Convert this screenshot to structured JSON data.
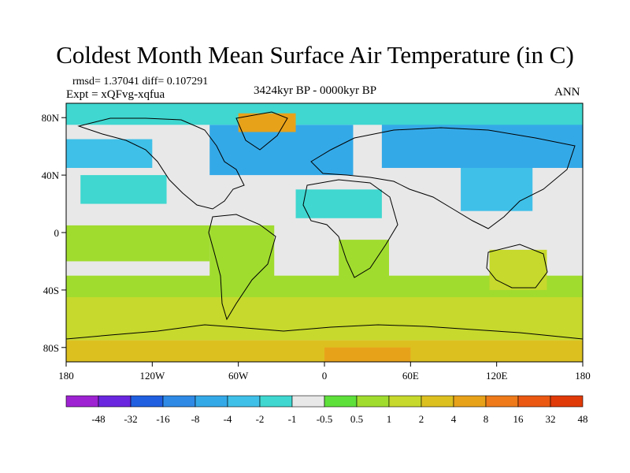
{
  "title": "Coldest Month Mean Surface Air Temperature (in C)",
  "stats_line": "rmsd= 1.37041 diff= 0.107291",
  "experiment_line": "Expt = xQFvg-xqfua",
  "period_label": "3424kyr BP - 0000kyr BP",
  "season_label": "ANN",
  "chart_data": {
    "type": "heatmap",
    "title": "Coldest Month Mean Surface Air Temperature (in C)",
    "projection": "cylindrical-equidistant",
    "x_range": [
      -180,
      180
    ],
    "y_range": [
      -90,
      90
    ],
    "x_ticks": [
      {
        "value": -180,
        "label": "180"
      },
      {
        "value": -120,
        "label": "120W"
      },
      {
        "value": -60,
        "label": "60W"
      },
      {
        "value": 0,
        "label": "0"
      },
      {
        "value": 60,
        "label": "60E"
      },
      {
        "value": 120,
        "label": "120E"
      },
      {
        "value": 180,
        "label": "180"
      }
    ],
    "y_ticks": [
      {
        "value": 80,
        "label": "80N"
      },
      {
        "value": 40,
        "label": "40N"
      },
      {
        "value": 0,
        "label": "0"
      },
      {
        "value": -40,
        "label": "40S"
      },
      {
        "value": -80,
        "label": "80S"
      }
    ],
    "colorbar": {
      "colors": [
        "#9e22d2",
        "#6a26de",
        "#1f5fe0",
        "#2f8ae6",
        "#34a9e8",
        "#3fc0e8",
        "#3fd7d0",
        "#e8e8e8",
        "#5ee03a",
        "#a0dc2e",
        "#c6d92c",
        "#dcc020",
        "#e8a21a",
        "#ee7a1a",
        "#ea5812",
        "#e03a08"
      ],
      "labels": [
        "-48",
        "-32",
        "-16",
        "-8",
        "-4",
        "-2",
        "-1",
        "-0.5",
        "0.5",
        "1",
        "2",
        "4",
        "8",
        "16",
        "32",
        "48"
      ]
    },
    "regions": [
      {
        "name": "background",
        "lon_range": [
          -180,
          180
        ],
        "lat_range": [
          -90,
          90
        ],
        "color": "#e8e8e8"
      },
      {
        "name": "southern-ocean-band",
        "lon_range": [
          -180,
          180
        ],
        "lat_range": [
          -75,
          -45
        ],
        "color": "#c6d92c"
      },
      {
        "name": "southern-ocean-band-north",
        "lon_range": [
          -180,
          180
        ],
        "lat_range": [
          -45,
          -30
        ],
        "color": "#a0dc2e"
      },
      {
        "name": "antarctic-coast",
        "lon_range": [
          -180,
          180
        ],
        "lat_range": [
          -90,
          -75
        ],
        "color": "#dcc020"
      },
      {
        "name": "tropical-pacific",
        "lon_range": [
          -180,
          -80
        ],
        "lat_range": [
          -20,
          5
        ],
        "color": "#a0dc2e"
      },
      {
        "name": "north-atlantic",
        "lon_range": [
          -80,
          20
        ],
        "lat_range": [
          40,
          75
        ],
        "color": "#34a9e8"
      },
      {
        "name": "north-pacific",
        "lon_range": [
          -180,
          -120
        ],
        "lat_range": [
          45,
          65
        ],
        "color": "#3fc0e8"
      },
      {
        "name": "mid-north-pacific",
        "lon_range": [
          -170,
          -110
        ],
        "lat_range": [
          20,
          40
        ],
        "color": "#3fd7d0"
      },
      {
        "name": "siberia",
        "lon_range": [
          40,
          180
        ],
        "lat_range": [
          45,
          80
        ],
        "color": "#34a9e8"
      },
      {
        "name": "east-asia",
        "lon_range": [
          95,
          145
        ],
        "lat_range": [
          15,
          45
        ],
        "color": "#3fc0e8"
      },
      {
        "name": "arctic-ocean",
        "lon_range": [
          -180,
          180
        ],
        "lat_range": [
          75,
          90
        ],
        "color": "#3fd7d0"
      },
      {
        "name": "north-africa",
        "lon_range": [
          -20,
          40
        ],
        "lat_range": [
          10,
          30
        ],
        "color": "#3fd7d0"
      },
      {
        "name": "southern-africa",
        "lon_range": [
          10,
          45
        ],
        "lat_range": [
          -35,
          -5
        ],
        "color": "#a0dc2e"
      },
      {
        "name": "south-america",
        "lon_range": [
          -80,
          -35
        ],
        "lat_range": [
          -35,
          5
        ],
        "color": "#a0dc2e"
      },
      {
        "name": "australia",
        "lon_range": [
          115,
          155
        ],
        "lat_range": [
          -40,
          -12
        ],
        "color": "#c6d92c"
      },
      {
        "name": "greenland-warm",
        "lon_range": [
          -60,
          -20
        ],
        "lat_range": [
          70,
          83
        ],
        "color": "#e8a21a"
      },
      {
        "name": "eastern-antarctica-warm",
        "lon_range": [
          0,
          60
        ],
        "lat_range": [
          -90,
          -80
        ],
        "color": "#e8a21a"
      },
      {
        "name": "indian-ocean",
        "lon_range": [
          50,
          110
        ],
        "lat_range": [
          -20,
          5
        ],
        "color": "#e8e8e8"
      }
    ]
  }
}
